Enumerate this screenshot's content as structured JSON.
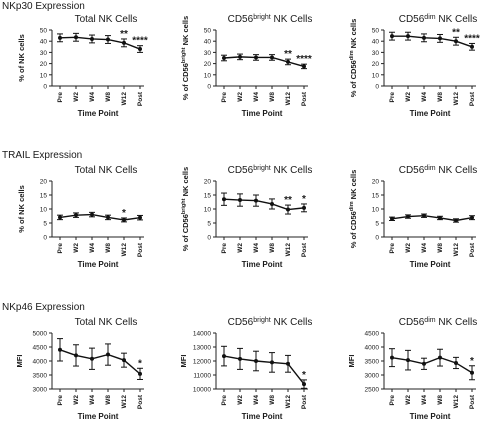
{
  "sections": [
    {
      "title": "NKp30 Expression"
    },
    {
      "title": "TRAIL Expression"
    },
    {
      "title": "NKp46 Expression"
    }
  ],
  "chart_data": [
    {
      "type": "line",
      "title_main": "Total NK Cells",
      "title_sup": "",
      "title_suffix": "",
      "xlabel": "Time Point",
      "ylabel_parts": [
        "% of NK cells"
      ],
      "categories": [
        "Pre",
        "W2",
        "W4",
        "W8",
        "W12",
        "Post"
      ],
      "yticks": [
        0,
        10,
        20,
        30,
        40,
        50
      ],
      "ylim": [
        0,
        50
      ],
      "values": [
        43,
        43.5,
        42,
        41.5,
        38.5,
        33
      ],
      "errors": [
        3.5,
        3.5,
        3.5,
        3.5,
        3.5,
        3
      ],
      "annotations": [
        "",
        "",
        "",
        "",
        "**",
        "****"
      ]
    },
    {
      "type": "line",
      "title_main": "CD56",
      "title_sup": "bright",
      "title_suffix": " NK Cells",
      "xlabel": "Time Point",
      "ylabel_parts": [
        "% of CD56",
        "bright",
        " NK cells"
      ],
      "categories": [
        "Pre",
        "W2",
        "W4",
        "W8",
        "W12",
        "Post"
      ],
      "yticks": [
        0,
        10,
        20,
        30,
        40,
        50
      ],
      "ylim": [
        0,
        50
      ],
      "values": [
        25,
        26,
        25.5,
        25.5,
        21.5,
        17.5
      ],
      "errors": [
        2.5,
        2.5,
        2.5,
        2.5,
        2.5,
        2
      ],
      "annotations": [
        "",
        "",
        "",
        "",
        "**",
        "****"
      ]
    },
    {
      "type": "line",
      "title_main": "CD56",
      "title_sup": "dim",
      "title_suffix": " NK Cells",
      "xlabel": "Time Point",
      "ylabel_parts": [
        "% of CD56",
        "dim",
        " NK cells"
      ],
      "categories": [
        "Pre",
        "W2",
        "W4",
        "W8",
        "W12",
        "Post"
      ],
      "yticks": [
        0,
        10,
        20,
        30,
        40,
        50
      ],
      "ylim": [
        0,
        50
      ],
      "values": [
        44.5,
        44.5,
        43,
        42.5,
        40,
        35
      ],
      "errors": [
        3.5,
        3.5,
        3.5,
        3.5,
        3.5,
        3
      ],
      "annotations": [
        "",
        "",
        "",
        "",
        "**",
        "****"
      ]
    },
    {
      "type": "line",
      "title_main": "Total NK Cells",
      "title_sup": "",
      "title_suffix": "",
      "xlabel": "Time Point",
      "ylabel_parts": [
        "% of NK cells"
      ],
      "categories": [
        "Pre",
        "W2",
        "W4",
        "W8",
        "W12",
        "Post"
      ],
      "yticks": [
        0,
        5,
        10,
        15,
        20
      ],
      "ylim": [
        0,
        20
      ],
      "values": [
        7,
        7.8,
        8,
        7,
        6.1,
        6.9
      ],
      "errors": [
        0.8,
        0.8,
        0.8,
        0.8,
        0.7,
        0.8
      ],
      "annotations": [
        "",
        "",
        "",
        "",
        "*",
        ""
      ]
    },
    {
      "type": "line",
      "title_main": "CD56",
      "title_sup": "bright",
      "title_suffix": " NK Cells",
      "xlabel": "Time Point",
      "ylabel_parts": [
        "% of CD56",
        "bright",
        " NK cells"
      ],
      "categories": [
        "Pre",
        "W2",
        "W4",
        "W8",
        "W12",
        "Post"
      ],
      "yticks": [
        0,
        5,
        10,
        15,
        20
      ],
      "ylim": [
        0,
        20
      ],
      "values": [
        13.5,
        13.2,
        13,
        11.8,
        9.8,
        10.4
      ],
      "errors": [
        2.2,
        2.2,
        2,
        1.8,
        1.6,
        1.4
      ],
      "annotations": [
        "",
        "",
        "",
        "",
        "**",
        "*"
      ]
    },
    {
      "type": "line",
      "title_main": "CD56",
      "title_sup": "dim",
      "title_suffix": " NK Cells",
      "xlabel": "Time Point",
      "ylabel_parts": [
        "% of CD56",
        "dim",
        " NK cells"
      ],
      "categories": [
        "Pre",
        "W2",
        "W4",
        "W8",
        "W12",
        "Post"
      ],
      "yticks": [
        0,
        5,
        10,
        15,
        20
      ],
      "ylim": [
        0,
        20
      ],
      "values": [
        6.5,
        7.3,
        7.6,
        6.8,
        5.9,
        6.9
      ],
      "errors": [
        0.6,
        0.6,
        0.6,
        0.6,
        0.6,
        0.7
      ],
      "annotations": [
        "",
        "",
        "",
        "",
        "",
        ""
      ]
    },
    {
      "type": "line",
      "title_main": "Total NK Cells",
      "title_sup": "",
      "title_suffix": "",
      "xlabel": "Time Point",
      "ylabel_parts": [
        "MFI"
      ],
      "categories": [
        "Pre",
        "W2",
        "W4",
        "W8",
        "W12",
        "Post"
      ],
      "yticks": [
        3000,
        3500,
        4000,
        4500,
        5000
      ],
      "ylim": [
        3000,
        5000
      ],
      "values": [
        4400,
        4200,
        4080,
        4230,
        4030,
        3540
      ],
      "errors": [
        400,
        380,
        380,
        380,
        250,
        200
      ],
      "annotations": [
        "",
        "",
        "",
        "",
        "",
        "*"
      ]
    },
    {
      "type": "line",
      "title_main": "CD56",
      "title_sup": "bright",
      "title_suffix": " NK Cells",
      "xlabel": "Time Point",
      "ylabel_parts": [
        "MFI"
      ],
      "categories": [
        "Pre",
        "W2",
        "W4",
        "W8",
        "W12",
        "Post"
      ],
      "yticks": [
        10000,
        11000,
        12000,
        13000,
        14000
      ],
      "ylim": [
        10000,
        14000
      ],
      "values": [
        12350,
        12150,
        12000,
        11900,
        11800,
        10350
      ],
      "errors": [
        700,
        750,
        700,
        700,
        600,
        300
      ],
      "annotations": [
        "",
        "",
        "",
        "",
        "",
        "*"
      ]
    },
    {
      "type": "line",
      "title_main": "CD56",
      "title_sup": "dim",
      "title_suffix": " NK Cells",
      "xlabel": "Time Point",
      "ylabel_parts": [
        "MFI"
      ],
      "categories": [
        "Pre",
        "W2",
        "W4",
        "W8",
        "W12",
        "Post"
      ],
      "yticks": [
        2500,
        3000,
        3500,
        4000,
        4500
      ],
      "ylim": [
        2500,
        4500
      ],
      "values": [
        3620,
        3530,
        3400,
        3620,
        3430,
        3080
      ],
      "errors": [
        320,
        350,
        200,
        300,
        200,
        250
      ],
      "annotations": [
        "",
        "",
        "",
        "",
        "",
        "*"
      ]
    }
  ]
}
